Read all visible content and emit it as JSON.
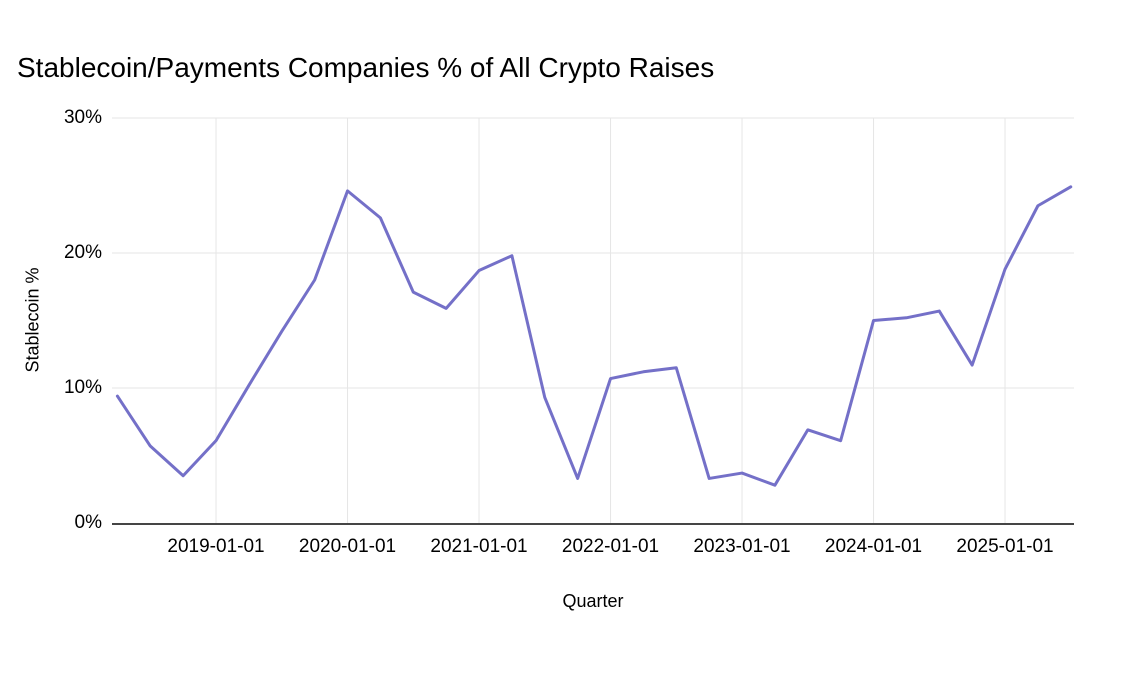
{
  "chart_data": {
    "type": "line",
    "title": "Stablecoin/Payments Companies % of All Crypto Raises",
    "xlabel": "Quarter",
    "ylabel": "Stablecoin %",
    "x": [
      "2018-04-01",
      "2018-07-01",
      "2018-10-01",
      "2019-01-01",
      "2019-04-01",
      "2019-07-01",
      "2019-10-01",
      "2020-01-01",
      "2020-04-01",
      "2020-07-01",
      "2020-10-01",
      "2021-01-01",
      "2021-04-01",
      "2021-07-01",
      "2021-10-01",
      "2022-01-01",
      "2022-04-01",
      "2022-07-01",
      "2022-10-01",
      "2023-01-01",
      "2023-04-01",
      "2023-07-01",
      "2023-10-01",
      "2024-01-01",
      "2024-04-01",
      "2024-07-01",
      "2024-10-01",
      "2025-01-01",
      "2025-04-01",
      "2025-07-01"
    ],
    "values": [
      9.4,
      5.7,
      3.5,
      6.1,
      10.2,
      14.2,
      18.0,
      24.6,
      22.6,
      17.1,
      15.9,
      18.7,
      19.8,
      9.3,
      3.3,
      10.7,
      11.2,
      11.5,
      3.3,
      3.7,
      2.8,
      6.9,
      6.1,
      15.0,
      15.2,
      15.7,
      11.7,
      18.8,
      23.5,
      24.9
    ],
    "ylim": [
      0,
      30
    ],
    "yticks": [
      {
        "value": 0,
        "label": "0%"
      },
      {
        "value": 10,
        "label": "10%"
      },
      {
        "value": 20,
        "label": "20%"
      },
      {
        "value": 30,
        "label": "30%"
      }
    ],
    "xticks": [
      "2019-01-01",
      "2020-01-01",
      "2021-01-01",
      "2022-01-01",
      "2023-01-01",
      "2024-01-01",
      "2025-01-01"
    ],
    "grid": true,
    "legend": "none",
    "colors": {
      "line": "#7470c8",
      "grid": "#e6e6e6",
      "axis": "#454545",
      "text": "#000000",
      "background": "#ffffff"
    }
  }
}
